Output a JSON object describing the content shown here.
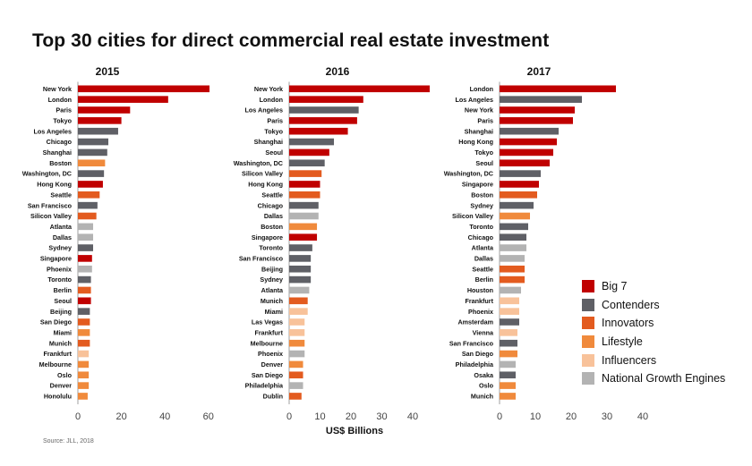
{
  "title": "Top 30 cities for direct commercial real estate investment",
  "source": "Source: JLL, 2018",
  "colors": {
    "Big 7": "#c00000",
    "Contenders": "#5f6066",
    "Innovators": "#e35b1f",
    "Lifestyle": "#f08a3c",
    "Influencers": "#f8c29a",
    "National Growth Engines": "#b3b3b3"
  },
  "legend": [
    {
      "label": "Big 7",
      "group": "Big 7"
    },
    {
      "label": "Contenders",
      "group": "Contenders"
    },
    {
      "label": "Innovators",
      "group": "Innovators"
    },
    {
      "label": "Lifestyle",
      "group": "Lifestyle"
    },
    {
      "label": "Influencers",
      "group": "Influencers"
    },
    {
      "label": "National Growth Engines",
      "group": "National Growth Engines"
    }
  ],
  "chart_data": [
    {
      "type": "bar",
      "orientation": "horizontal",
      "title": "2015",
      "xlabel": "",
      "xlim": [
        0,
        70
      ],
      "xticks": [
        0,
        20,
        40,
        60
      ],
      "categories": [
        "New York",
        "London",
        "Paris",
        "Tokyo",
        "Los Angeles",
        "Chicago",
        "Shanghai",
        "Boston",
        "Washington, DC",
        "Hong Kong",
        "Seattle",
        "San Francisco",
        "Silicon Valley",
        "Atlanta",
        "Dallas",
        "Sydney",
        "Singapore",
        "Phoenix",
        "Toronto",
        "Berlin",
        "Seoul",
        "Beijing",
        "San Diego",
        "Miami",
        "Munich",
        "Frankfurt",
        "Melbourne",
        "Oslo",
        "Denver",
        "Honolulu"
      ],
      "values": [
        60.5,
        41.5,
        24.0,
        20.0,
        18.5,
        14.0,
        13.5,
        12.5,
        12.0,
        11.5,
        10.0,
        9.0,
        8.5,
        7.0,
        7.0,
        7.0,
        6.5,
        6.5,
        6.0,
        6.0,
        6.0,
        5.5,
        5.5,
        5.5,
        5.5,
        5.0,
        5.0,
        5.0,
        5.0,
        4.5
      ],
      "groups": [
        "Big 7",
        "Big 7",
        "Big 7",
        "Big 7",
        "Contenders",
        "Contenders",
        "Contenders",
        "Lifestyle",
        "Contenders",
        "Big 7",
        "Innovators",
        "Contenders",
        "Innovators",
        "National Growth Engines",
        "National Growth Engines",
        "Contenders",
        "Big 7",
        "National Growth Engines",
        "Contenders",
        "Innovators",
        "Big 7",
        "Contenders",
        "Innovators",
        "Lifestyle",
        "Innovators",
        "Influencers",
        "Lifestyle",
        "Lifestyle",
        "Lifestyle",
        "Lifestyle"
      ]
    },
    {
      "type": "bar",
      "orientation": "horizontal",
      "title": "2016",
      "xlabel": "US$ Billions",
      "xlim": [
        0,
        46
      ],
      "xticks": [
        0,
        10,
        20,
        30,
        40
      ],
      "categories": [
        "New York",
        "London",
        "Los Angeles",
        "Paris",
        "Tokyo",
        "Shanghai",
        "Seoul",
        "Washington, DC",
        "Silicon Valley",
        "Hong Kong",
        "Seattle",
        "Chicago",
        "Dallas",
        "Boston",
        "Singapore",
        "Toronto",
        "San Francisco",
        "Beijing",
        "Sydney",
        "Atlanta",
        "Munich",
        "Miami",
        "Las Vegas",
        "Frankfurt",
        "Melbourne",
        "Phoenix",
        "Denver",
        "San Diego",
        "Philadelphia",
        "Dublin"
      ],
      "values": [
        45.5,
        24.0,
        22.5,
        22.0,
        19.0,
        14.5,
        13.0,
        11.5,
        10.5,
        10.0,
        10.0,
        9.5,
        9.5,
        9.0,
        9.0,
        7.5,
        7.0,
        7.0,
        7.0,
        6.5,
        6.0,
        6.0,
        5.0,
        5.0,
        5.0,
        5.0,
        4.5,
        4.5,
        4.5,
        4.0
      ],
      "groups": [
        "Big 7",
        "Big 7",
        "Contenders",
        "Big 7",
        "Big 7",
        "Contenders",
        "Big 7",
        "Contenders",
        "Innovators",
        "Big 7",
        "Innovators",
        "Contenders",
        "National Growth Engines",
        "Lifestyle",
        "Big 7",
        "Contenders",
        "Contenders",
        "Contenders",
        "Contenders",
        "National Growth Engines",
        "Innovators",
        "Influencers",
        "Influencers",
        "Influencers",
        "Lifestyle",
        "National Growth Engines",
        "Lifestyle",
        "Innovators",
        "National Growth Engines",
        "Innovators"
      ]
    },
    {
      "type": "bar",
      "orientation": "horizontal",
      "title": "2017",
      "xlabel": "",
      "xlim": [
        0,
        40
      ],
      "xticks": [
        0,
        10,
        20,
        30,
        40
      ],
      "categories": [
        "London",
        "Los Angeles",
        "New York",
        "Paris",
        "Shanghai",
        "Hong Kong",
        "Tokyo",
        "Seoul",
        "Washington, DC",
        "Singapore",
        "Boston",
        "Sydney",
        "Silicon Valley",
        "Toronto",
        "Chicago",
        "Atlanta",
        "Dallas",
        "Seattle",
        "Berlin",
        "Houston",
        "Frankfurt",
        "Phoenix",
        "Amsterdam",
        "Vienna",
        "San Francisco",
        "San Diego",
        "Philadelphia",
        "Osaka",
        "Oslo",
        "Munich"
      ],
      "values": [
        32.5,
        23.0,
        21.0,
        20.5,
        16.5,
        16.0,
        15.0,
        14.0,
        11.5,
        11.0,
        10.5,
        9.5,
        8.5,
        8.0,
        7.5,
        7.5,
        7.0,
        7.0,
        7.0,
        6.0,
        5.5,
        5.5,
        5.5,
        5.0,
        5.0,
        5.0,
        4.5,
        4.5,
        4.5,
        4.5
      ],
      "groups": [
        "Big 7",
        "Contenders",
        "Big 7",
        "Big 7",
        "Contenders",
        "Big 7",
        "Big 7",
        "Big 7",
        "Contenders",
        "Big 7",
        "Innovators",
        "Contenders",
        "Lifestyle",
        "Contenders",
        "Contenders",
        "National Growth Engines",
        "National Growth Engines",
        "Innovators",
        "Innovators",
        "National Growth Engines",
        "Influencers",
        "Influencers",
        "Contenders",
        "Influencers",
        "Contenders",
        "Lifestyle",
        "National Growth Engines",
        "Contenders",
        "Lifestyle",
        "Lifestyle"
      ]
    }
  ]
}
